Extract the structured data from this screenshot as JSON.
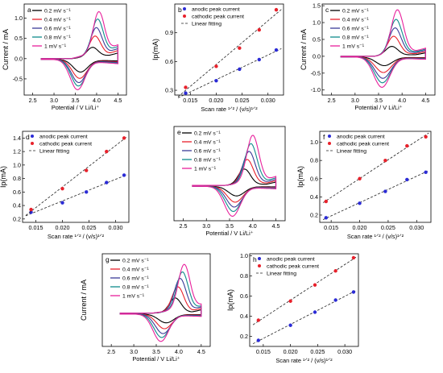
{
  "chart_data": [
    {
      "id": "a",
      "type": "line",
      "kind": "cv",
      "panel_label": "a",
      "xlabel": "Potential / V Li/Li⁺",
      "ylabel": "Current / mA",
      "xlim": [
        2.3,
        4.7
      ],
      "ylim": [
        -0.9,
        1.35
      ],
      "xticks": [
        2.5,
        3.0,
        3.5,
        4.0,
        4.5
      ],
      "xtick_labels": [
        "2.5",
        "3.0",
        "3.5",
        "4.0",
        "4.5"
      ],
      "yticks": [
        -0.5,
        0.0,
        0.5,
        1.0
      ],
      "ytick_labels": [
        "-0.5",
        "0.0",
        "0.5",
        "1.0"
      ],
      "cv_lo": 2.7,
      "cv_hi": 4.5,
      "legend": {
        "position": "top-left"
      },
      "series": [
        {
          "name": "0.2 mV s⁻¹",
          "color": "#000000",
          "ip_a": 0.28,
          "E_a": 3.9,
          "ip_c": -0.3,
          "E_c": 3.62,
          "plateau": 0.1
        },
        {
          "name": "0.4 mV s⁻¹",
          "color": "#e8212b",
          "ip_a": 0.55,
          "E_a": 3.96,
          "ip_c": -0.45,
          "E_c": 3.6,
          "plateau": 0.16
        },
        {
          "name": "0.6 mV s⁻¹",
          "color": "#3b3b98",
          "ip_a": 0.75,
          "E_a": 3.99,
          "ip_c": -0.55,
          "E_c": 3.58,
          "plateau": 0.21
        },
        {
          "name": "0.8 mV s⁻¹",
          "color": "#0f8c8c",
          "ip_a": 0.95,
          "E_a": 4.02,
          "ip_c": -0.63,
          "E_c": 3.57,
          "plateau": 0.26
        },
        {
          "name": "1 mV s⁻¹",
          "color": "#e8219c",
          "ip_a": 1.12,
          "E_a": 4.05,
          "ip_c": -0.72,
          "E_c": 3.55,
          "plateau": 0.3
        }
      ]
    },
    {
      "id": "b",
      "type": "scatter",
      "kind": "fit",
      "panel_label": "b",
      "xlabel": "Scan rate ¹ᐟ² / (v/s)¹ᐟ²",
      "ylabel": "Ip(mA)",
      "xlim": [
        0.012,
        0.033
      ],
      "ylim": [
        0.25,
        1.2
      ],
      "xticks": [
        0.015,
        0.02,
        0.025,
        0.03
      ],
      "xtick_labels": [
        "0.015",
        "0.020",
        "0.025",
        "0.030"
      ],
      "yticks": [
        0.3,
        0.6,
        0.9
      ],
      "ytick_labels": [
        "0.3",
        "0.6",
        "0.9"
      ],
      "legend": {
        "position": "top-left"
      },
      "legend_entries": [
        "anodic peak current",
        "cathodic peak current",
        "Linear fitting"
      ],
      "x": [
        0.0141,
        0.02,
        0.0245,
        0.0283,
        0.0316
      ],
      "series": [
        {
          "name": "anodic peak current",
          "color": "#2b2bd6",
          "values": [
            0.27,
            0.4,
            0.52,
            0.62,
            0.72
          ]
        },
        {
          "name": "cathodic peak current",
          "color": "#e8212b",
          "values": [
            0.33,
            0.55,
            0.74,
            0.93,
            1.14
          ]
        }
      ]
    },
    {
      "id": "c",
      "type": "line",
      "kind": "cv",
      "panel_label": "c",
      "xlabel": "Potential / V Li/Li⁺",
      "ylabel": "Current / mA",
      "xlim": [
        2.3,
        4.7
      ],
      "ylim": [
        -1.15,
        1.55
      ],
      "xticks": [
        2.5,
        3.0,
        3.5,
        4.0,
        4.5
      ],
      "xtick_labels": [
        "2.5",
        "3.0",
        "3.5",
        "4.0",
        "4.5"
      ],
      "yticks": [
        -1.0,
        -0.5,
        0.0,
        0.5,
        1.0,
        1.5
      ],
      "ytick_labels": [
        "-1.0",
        "-0.5",
        "0.0",
        "0.5",
        "1.0",
        "1.5"
      ],
      "cv_lo": 2.7,
      "cv_hi": 4.5,
      "legend": {
        "position": "top-left"
      },
      "series": [
        {
          "name": "0.2 mV s⁻¹",
          "color": "#000000",
          "ip_a": 0.3,
          "E_a": 3.78,
          "ip_c": -0.25,
          "E_c": 3.62,
          "plateau": 0.06
        },
        {
          "name": "0.4 mV s⁻¹",
          "color": "#e8212b",
          "ip_a": 0.6,
          "E_a": 3.82,
          "ip_c": -0.45,
          "E_c": 3.6,
          "plateau": 0.1
        },
        {
          "name": "0.6 mV s⁻¹",
          "color": "#3b3b98",
          "ip_a": 0.85,
          "E_a": 3.85,
          "ip_c": -0.62,
          "E_c": 3.59,
          "plateau": 0.14
        },
        {
          "name": "0.8 mV s⁻¹",
          "color": "#0f8c8c",
          "ip_a": 1.1,
          "E_a": 3.87,
          "ip_c": -0.75,
          "E_c": 3.58,
          "plateau": 0.17
        },
        {
          "name": "1 mV s⁻¹",
          "color": "#e8219c",
          "ip_a": 1.38,
          "E_a": 3.9,
          "ip_c": -0.88,
          "E_c": 3.57,
          "plateau": 0.2
        }
      ]
    },
    {
      "id": "d",
      "type": "scatter",
      "kind": "fit",
      "panel_label": "d",
      "xlabel": "Scan rate ¹ᐟ² / (v/s)¹ᐟ²",
      "ylabel": "Ip(mA)",
      "xlim": [
        0.0125,
        0.0325
      ],
      "ylim": [
        0.15,
        1.5
      ],
      "xticks": [
        0.015,
        0.02,
        0.025,
        0.03
      ],
      "xtick_labels": [
        "0.015",
        "0.020",
        "0.025",
        "0.030"
      ],
      "yticks": [
        0.2,
        0.4,
        0.6,
        0.8,
        1.0,
        1.2,
        1.4
      ],
      "ytick_labels": [
        "0.2",
        "0.4",
        "0.6",
        "0.8",
        "1.0",
        "1.2",
        "1.4"
      ],
      "legend": {
        "position": "top-left"
      },
      "legend_entries": [
        "anodic peak current",
        "cathodic peak current",
        "Linear fitting"
      ],
      "x": [
        0.0141,
        0.02,
        0.0245,
        0.0283,
        0.0316
      ],
      "series": [
        {
          "name": "anodic peak current",
          "color": "#2b2bd6",
          "values": [
            0.3,
            0.44,
            0.6,
            0.74,
            0.85
          ]
        },
        {
          "name": "cathodic peak current",
          "color": "#e8212b",
          "values": [
            0.34,
            0.65,
            0.92,
            1.2,
            1.4
          ]
        }
      ]
    },
    {
      "id": "e",
      "type": "line",
      "kind": "cv",
      "panel_label": "e",
      "xlabel": "Potential / V Li/Li⁺",
      "ylabel": "",
      "xlim": [
        2.3,
        4.7
      ],
      "ylim": [
        -0.75,
        1.25
      ],
      "xticks": [
        2.5,
        3.0,
        3.5,
        4.0,
        4.5
      ],
      "xtick_labels": [
        "2.5",
        "3.0",
        "3.5",
        "4.0",
        "4.5"
      ],
      "yticks": [],
      "ytick_labels": [],
      "cv_lo": 2.7,
      "cv_hi": 4.5,
      "legend": {
        "position": "top-left"
      },
      "series": [
        {
          "name": "0.2 mV s⁻¹",
          "color": "#000000",
          "ip_a": 0.35,
          "E_a": 3.82,
          "ip_c": -0.2,
          "E_c": 3.65,
          "plateau": 0.03
        },
        {
          "name": "0.4 mV s⁻¹",
          "color": "#e8212b",
          "ip_a": 0.55,
          "E_a": 3.88,
          "ip_c": -0.33,
          "E_c": 3.62,
          "plateau": 0.06
        },
        {
          "name": "0.6 mV s⁻¹",
          "color": "#3b3b98",
          "ip_a": 0.72,
          "E_a": 3.92,
          "ip_c": -0.43,
          "E_c": 3.6,
          "plateau": 0.09
        },
        {
          "name": "0.8 mV s⁻¹",
          "color": "#0f8c8c",
          "ip_a": 0.88,
          "E_a": 3.96,
          "ip_c": -0.52,
          "E_c": 3.58,
          "plateau": 0.12
        },
        {
          "name": "1 mV s⁻¹",
          "color": "#e8219c",
          "ip_a": 1.05,
          "E_a": 4.0,
          "ip_c": -0.62,
          "E_c": 3.56,
          "plateau": 0.15
        }
      ]
    },
    {
      "id": "f",
      "type": "scatter",
      "kind": "fit",
      "panel_label": "f",
      "xlabel": "Scan rate ¹ᐟ² / (v/s)¹ᐟ²",
      "ylabel": "Ip(mA)",
      "xlim": [
        0.013,
        0.0325
      ],
      "ylim": [
        0.12,
        1.12
      ],
      "xticks": [
        0.015,
        0.02,
        0.025,
        0.03
      ],
      "xtick_labels": [
        "0.015",
        "0.020",
        "0.025",
        "0.030"
      ],
      "yticks": [
        0.2,
        0.4,
        0.6,
        0.8,
        1.0
      ],
      "ytick_labels": [
        "0.2",
        "0.4",
        "0.6",
        "0.8",
        "1.0"
      ],
      "legend": {
        "position": "top-left"
      },
      "legend_entries": [
        "anodic peak current",
        "cathodic peak current",
        "Linear fitting"
      ],
      "x": [
        0.0141,
        0.02,
        0.0245,
        0.0283,
        0.0316
      ],
      "series": [
        {
          "name": "anodic peak current",
          "color": "#2b2bd6",
          "values": [
            0.17,
            0.33,
            0.46,
            0.59,
            0.67
          ]
        },
        {
          "name": "cathodic peak current",
          "color": "#e8212b",
          "values": [
            0.35,
            0.6,
            0.8,
            0.96,
            1.06
          ]
        }
      ]
    },
    {
      "id": "g",
      "type": "line",
      "kind": "cv",
      "panel_label": "g",
      "xlabel": "Potential / V Li/Li⁺",
      "ylabel": "Current / mA",
      "xlim": [
        2.3,
        4.7
      ],
      "ylim": [
        -0.7,
        1.25
      ],
      "xticks": [
        2.5,
        3.0,
        3.5,
        4.0,
        4.5
      ],
      "xtick_labels": [
        "2.5",
        "3.0",
        "3.5",
        "4.0",
        "4.5"
      ],
      "yticks": [],
      "ytick_labels": [],
      "cv_lo": 2.7,
      "cv_hi": 4.5,
      "legend": {
        "position": "top-left"
      },
      "series": [
        {
          "name": "0.2 mV s⁻¹",
          "color": "#000000",
          "ip_a": 0.32,
          "E_a": 3.92,
          "ip_c": -0.18,
          "E_c": 3.72,
          "plateau": 0.03
        },
        {
          "name": "0.4 mV s⁻¹",
          "color": "#e8212b",
          "ip_a": 0.55,
          "E_a": 3.98,
          "ip_c": -0.3,
          "E_c": 3.68,
          "plateau": 0.06
        },
        {
          "name": "0.6 mV s⁻¹",
          "color": "#3b3b98",
          "ip_a": 0.72,
          "E_a": 4.03,
          "ip_c": -0.4,
          "E_c": 3.65,
          "plateau": 0.09
        },
        {
          "name": "0.8 mV s⁻¹",
          "color": "#0f8c8c",
          "ip_a": 0.85,
          "E_a": 4.08,
          "ip_c": -0.48,
          "E_c": 3.62,
          "plateau": 0.11
        },
        {
          "name": "1 mV s⁻¹",
          "color": "#e8219c",
          "ip_a": 1.0,
          "E_a": 4.12,
          "ip_c": -0.56,
          "E_c": 3.6,
          "plateau": 0.14
        }
      ]
    },
    {
      "id": "h",
      "type": "scatter",
      "kind": "fit",
      "panel_label": "h",
      "xlabel": "Scan rate ¹ᐟ² / (v/s)¹ᐟ²",
      "ylabel": "Ip(mA)",
      "xlim": [
        0.0125,
        0.0325
      ],
      "ylim": [
        0.1,
        1.02
      ],
      "xticks": [
        0.015,
        0.02,
        0.025,
        0.03
      ],
      "xtick_labels": [
        "0.015",
        "0.020",
        "0.025",
        "0.030"
      ],
      "yticks": [
        0.2,
        0.4,
        0.6,
        0.8,
        1.0
      ],
      "ytick_labels": [
        "0.2",
        "0.4",
        "0.6",
        "0.8",
        "1.0"
      ],
      "legend": {
        "position": "top-left"
      },
      "legend_entries": [
        "anodic peak current",
        "cathodic peak current",
        "Linear fitting"
      ],
      "x": [
        0.0141,
        0.02,
        0.0245,
        0.0283,
        0.0316
      ],
      "series": [
        {
          "name": "anodic peak current",
          "color": "#2b2bd6",
          "values": [
            0.16,
            0.31,
            0.44,
            0.56,
            0.64
          ]
        },
        {
          "name": "cathodic peak current",
          "color": "#e8212b",
          "values": [
            0.36,
            0.55,
            0.71,
            0.85,
            0.98
          ]
        }
      ]
    }
  ]
}
